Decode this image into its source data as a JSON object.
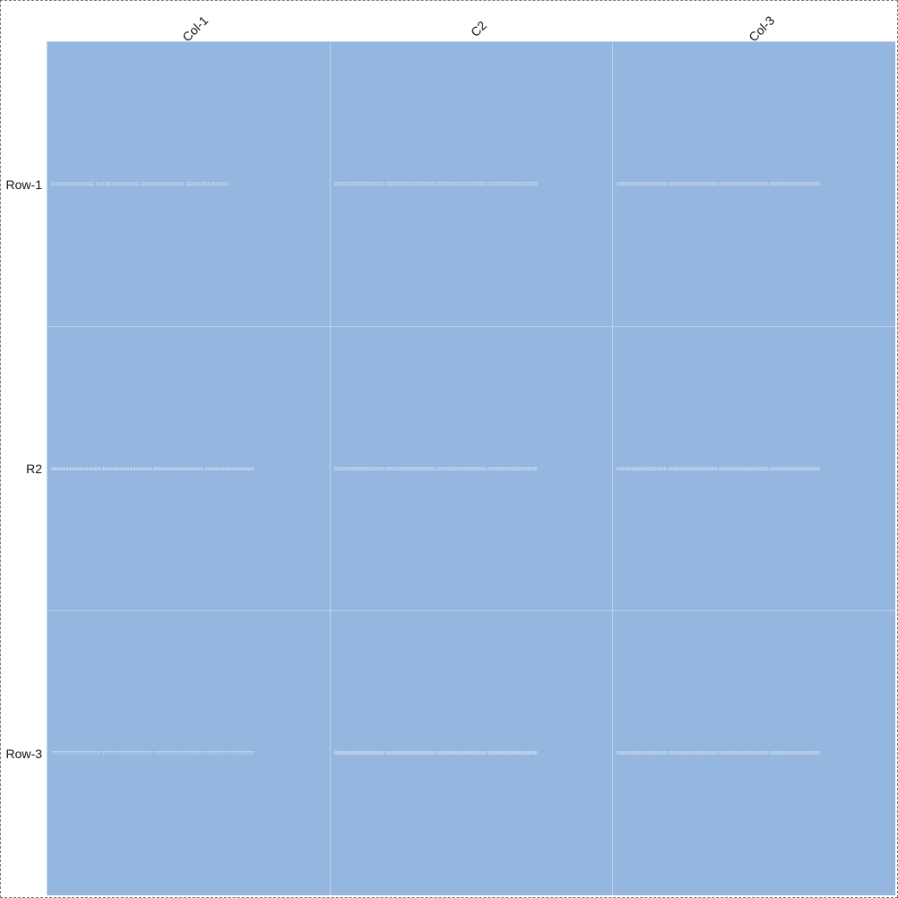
{
  "chart_data": {
    "type": "table",
    "columns": [
      "Col-1",
      "C2",
      "Col-3"
    ],
    "rows": [
      "Row-1",
      "R2",
      "Row-3"
    ],
    "cells": [
      [
        "11111111111111111111 11111111111111111111 11111111111111111111 11111111111111111111",
        "22222222222222222222 22222222222222222222 22222222222222222222 22222222222222222222",
        "33333333333333333333 33333333333333333333 33333333333333333333 33333333333333333333"
      ],
      [
        "44444444444444444444 44444444444444444444 44444444444444444444 44444444444444444444",
        "55555555555555555555 55555555555555555555 55555555555555555555 55555555555555555555",
        "66666666666666666666 66666666666666666666 66666666666666666666 66666666666666666666"
      ],
      [
        "77777777777777777777 77777777777777777777 77777777777777777777 77777777777777777777",
        "88888888888888888888 88888888888888888888 88888888888888888888 88888888888888888888",
        "99999999999999999999 99999999999999999999 99999999999999999999 99999999999999999999"
      ]
    ],
    "cell_color": "#95b6df",
    "divider_color": "#bcd0eb",
    "text_color": "#e6edf8",
    "grid": true
  }
}
